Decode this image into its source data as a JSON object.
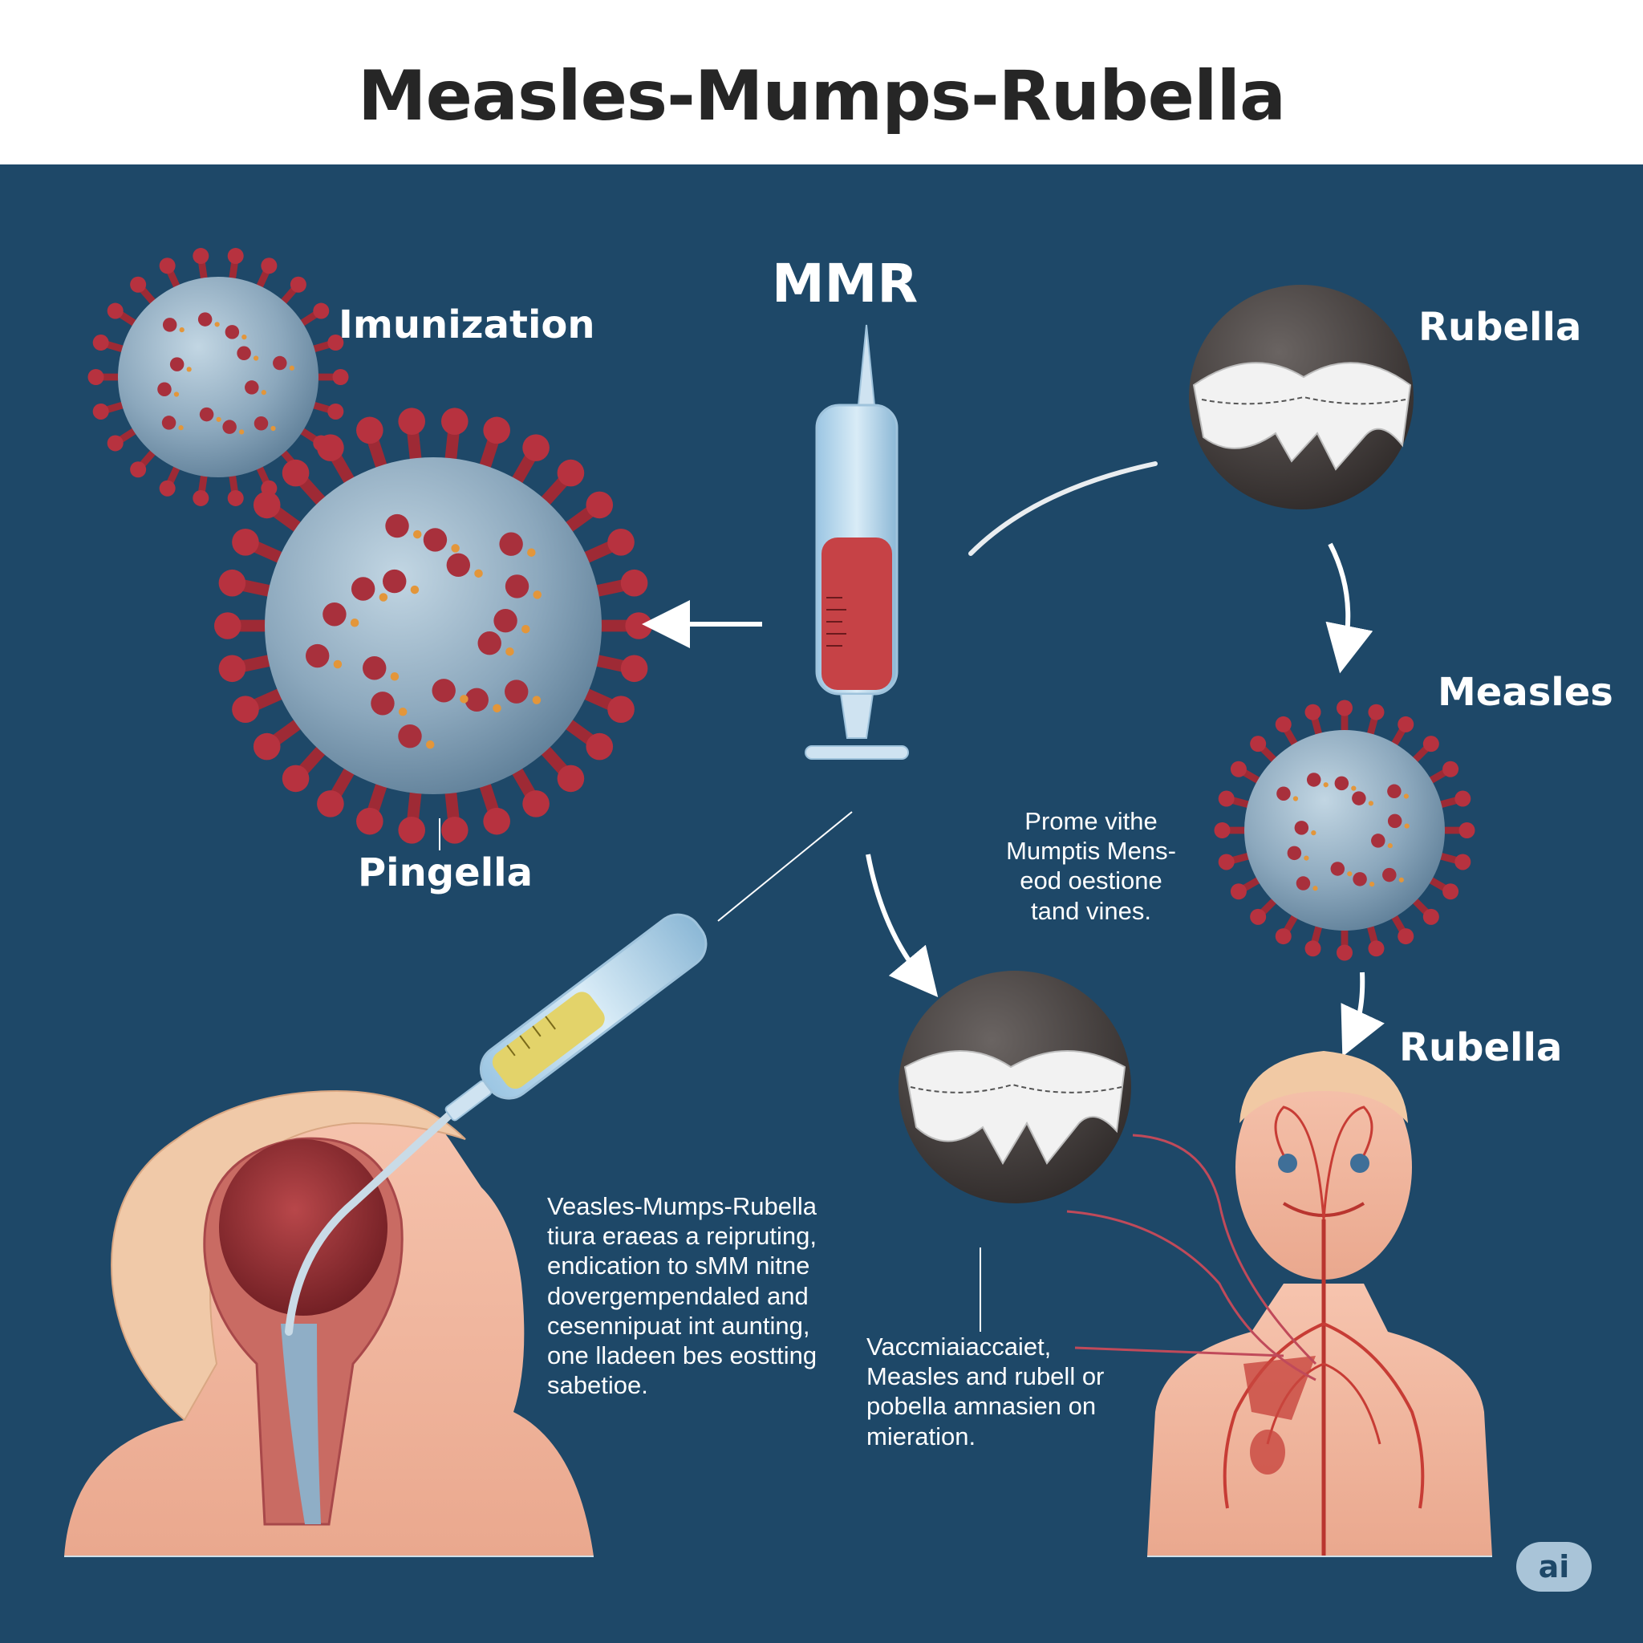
{
  "header": {
    "title": "Measles-Mumps-Rubella"
  },
  "labels": {
    "center": "MMR",
    "top_left": "Imunization",
    "left_virus": "Pingella",
    "top_right": "Rubella",
    "mid_right": "Measles",
    "lower_right": "Rubella"
  },
  "notes": {
    "middle_right": [
      "Prome vithe",
      "Mumptis Mens-",
      "eod oestione",
      "tand vines."
    ],
    "bottom_left": [
      "Veasles-Mumps-Rubella",
      "tiura eraeas a reipruting,",
      "endication to sMM nitne",
      "dovergempendaled and",
      "cesennipuat int aunting,",
      "one lladeen bes eostting",
      "sabetioe."
    ],
    "bottom_center": [
      "Vaccmiaiaccaiet,",
      "Measles and rubell or",
      "pobella amnasien on",
      "mieration."
    ]
  },
  "badge": "ai"
}
